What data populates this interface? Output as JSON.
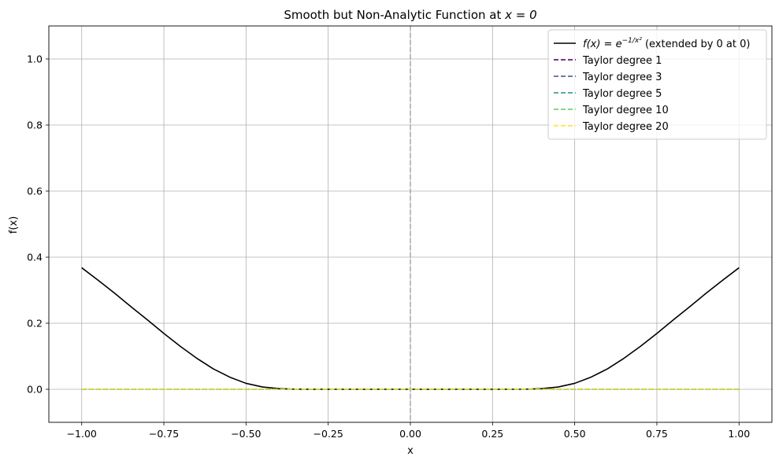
{
  "chart_data": {
    "type": "line",
    "title": "Smooth but Non-Analytic Function at ",
    "title_math": "x = 0",
    "xlabel": "x",
    "ylabel": "f(x)",
    "xlim": [
      -1.1,
      1.1
    ],
    "ylim": [
      -0.1,
      1.1
    ],
    "xticks": [
      -1.0,
      -0.75,
      -0.5,
      -0.25,
      0.0,
      0.25,
      0.5,
      0.75,
      1.0
    ],
    "xtick_labels": [
      "−1.00",
      "−0.75",
      "−0.50",
      "−0.25",
      "0.00",
      "0.25",
      "0.50",
      "0.75",
      "1.00"
    ],
    "yticks": [
      0.0,
      0.2,
      0.4,
      0.6,
      0.8,
      1.0
    ],
    "ytick_labels": [
      "0.0",
      "0.2",
      "0.4",
      "0.6",
      "0.8",
      "1.0"
    ],
    "grid": true,
    "vline_x": 0,
    "legend_position": "top-right",
    "series": [
      {
        "name": "f(x) = e^{-1/x^2} (extended by 0 at 0)",
        "legend_math_main": "f(x) = e",
        "legend_math_exp": "−1/x²",
        "legend_suffix": " (extended by 0 at 0)",
        "color": "#000000",
        "style": "solid",
        "x": [
          -1.0,
          -0.95,
          -0.9,
          -0.85,
          -0.8,
          -0.75,
          -0.7,
          -0.65,
          -0.6,
          -0.55,
          -0.5,
          -0.45,
          -0.4,
          -0.35,
          -0.3,
          -0.25,
          -0.2,
          0.0,
          0.2,
          0.25,
          0.3,
          0.35,
          0.4,
          0.45,
          0.5,
          0.55,
          0.6,
          0.65,
          0.7,
          0.75,
          0.8,
          0.85,
          0.9,
          0.95,
          1.0
        ],
        "y": [
          0.368,
          0.33,
          0.291,
          0.25,
          0.21,
          0.169,
          0.13,
          0.094,
          0.062,
          0.037,
          0.018,
          0.007,
          0.002,
          0.0003,
          0.0,
          0.0,
          0.0,
          0.0,
          0.0,
          0.0,
          0.0,
          0.0003,
          0.002,
          0.007,
          0.018,
          0.037,
          0.062,
          0.094,
          0.13,
          0.169,
          0.21,
          0.25,
          0.291,
          0.33,
          0.368
        ]
      },
      {
        "name": "Taylor degree 1",
        "color": "#440154",
        "style": "dashed",
        "x": [
          -1.0,
          1.0
        ],
        "y": [
          0.0,
          0.0
        ]
      },
      {
        "name": "Taylor degree 3",
        "color": "#3b528b",
        "style": "dashed",
        "x": [
          -1.0,
          1.0
        ],
        "y": [
          0.0,
          0.0
        ]
      },
      {
        "name": "Taylor degree 5",
        "color": "#21918c",
        "style": "dashed",
        "x": [
          -1.0,
          1.0
        ],
        "y": [
          0.0,
          0.0
        ]
      },
      {
        "name": "Taylor degree 10",
        "color": "#5ec962",
        "style": "dashed",
        "x": [
          -1.0,
          1.0
        ],
        "y": [
          0.0,
          0.0
        ]
      },
      {
        "name": "Taylor degree 20",
        "color": "#fde725",
        "style": "dashed",
        "x": [
          -1.0,
          1.0
        ],
        "y": [
          0.0,
          0.0
        ]
      }
    ]
  }
}
